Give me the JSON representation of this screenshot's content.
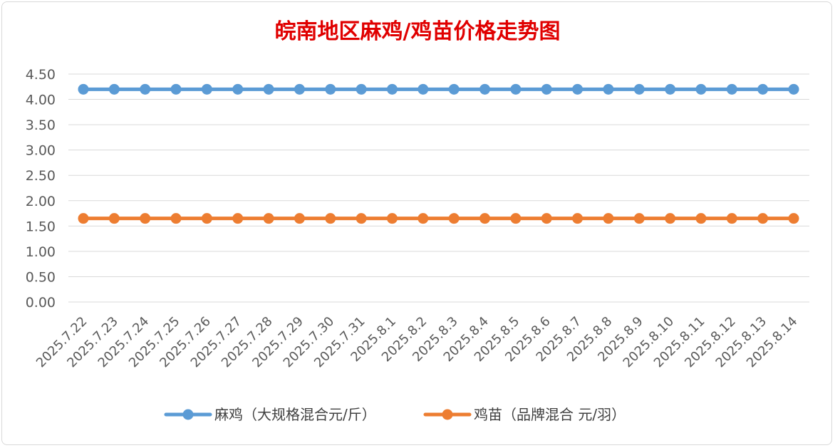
{
  "chart_data": {
    "type": "line",
    "title": "皖南地区麻鸡/鸡苗价格走势图",
    "xlabel": "",
    "ylabel": "",
    "categories": [
      "2025.7.22",
      "2025.7.23",
      "2025.7.24",
      "2025.7.25",
      "2025.7.26",
      "2025.7.27",
      "2025.7.28",
      "2025.7.29",
      "2025.7.30",
      "2025.7.31",
      "2025.8.1",
      "2025.8.2",
      "2025.8.3",
      "2025.8.4",
      "2025.8.5",
      "2025.8.6",
      "2025.8.7",
      "2025.8.8",
      "2025.8.9",
      "2025.8.10",
      "2025.8.11",
      "2025.8.12",
      "2025.8.13",
      "2025.8.14"
    ],
    "y_ticks": [
      "0.00",
      "0.50",
      "1.00",
      "1.50",
      "2.00",
      "2.50",
      "3.00",
      "3.50",
      "4.00",
      "4.50"
    ],
    "ylim": [
      0,
      4.5
    ],
    "grid": true,
    "legend_position": "bottom",
    "series": [
      {
        "name": "麻鸡（大规格混合元/斤）",
        "color": "#5b9bd5",
        "values": [
          4.2,
          4.2,
          4.2,
          4.2,
          4.2,
          4.2,
          4.2,
          4.2,
          4.2,
          4.2,
          4.2,
          4.2,
          4.2,
          4.2,
          4.2,
          4.2,
          4.2,
          4.2,
          4.2,
          4.2,
          4.2,
          4.2,
          4.2,
          4.2
        ]
      },
      {
        "name": "鸡苗（品牌混合 元/羽）",
        "color": "#ed7d31",
        "values": [
          1.65,
          1.65,
          1.65,
          1.65,
          1.65,
          1.65,
          1.65,
          1.65,
          1.65,
          1.65,
          1.65,
          1.65,
          1.65,
          1.65,
          1.65,
          1.65,
          1.65,
          1.65,
          1.65,
          1.65,
          1.65,
          1.65,
          1.65,
          1.65
        ]
      }
    ]
  }
}
